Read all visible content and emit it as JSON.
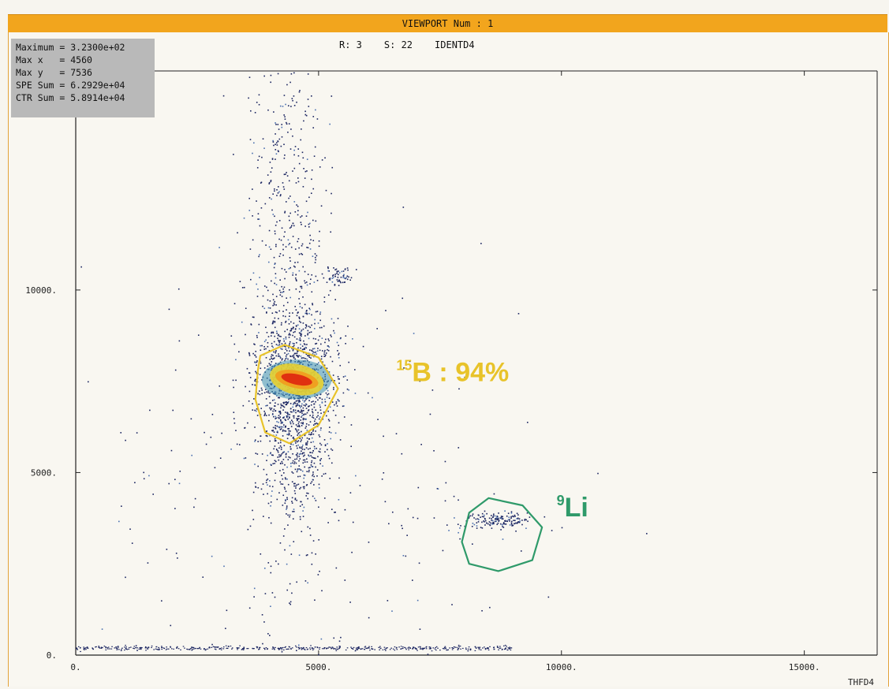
{
  "viewport": {
    "title": "VIEWPORT Num : 1"
  },
  "header": {
    "r_label": "R: 3",
    "s_label": "S: 22",
    "ident": "IDENTD4"
  },
  "stats": [
    {
      "label": "Maximum",
      "value": "3.2300e+02"
    },
    {
      "label": "Max x",
      "value": "4560"
    },
    {
      "label": "Max y",
      "value": "7536"
    },
    {
      "label": "SPE Sum",
      "value": "6.2929e+04"
    },
    {
      "label": "CTR Sum",
      "value": "5.8914e+04"
    }
  ],
  "chart_data": {
    "type": "scatter",
    "title": "",
    "xlabel": "THFD4",
    "ylabel": "",
    "xlim": [
      0,
      16500
    ],
    "ylim": [
      0,
      16000
    ],
    "xticks": [
      0,
      5000,
      10000,
      15000
    ],
    "xtick_labels": [
      "0.",
      "5000.",
      "10000.",
      "15000."
    ],
    "yticks": [
      0,
      5000,
      10000
    ],
    "ytick_labels": [
      "0.",
      "5000.",
      "10000."
    ],
    "grid": false,
    "colors": {
      "gate_b15": "#e8c32a",
      "gate_li9": "#2f9a6a",
      "dots": "#1a2460",
      "hot": "#e03010",
      "warm": "#f0a020"
    },
    "clusters": [
      {
        "name": "band",
        "cx": 4350,
        "cy": 10500,
        "sx": 420,
        "sy": 4200,
        "n": 700
      },
      {
        "name": "b15-core",
        "cx": 4500,
        "cy": 7600,
        "sx": 450,
        "sy": 900,
        "n": 900
      },
      {
        "name": "b15-lower",
        "cx": 4550,
        "cy": 5600,
        "sx": 350,
        "sy": 900,
        "n": 350
      },
      {
        "name": "blob",
        "cx": 5400,
        "cy": 10400,
        "sx": 150,
        "sy": 200,
        "n": 60
      },
      {
        "name": "li9",
        "cx": 8650,
        "cy": 3700,
        "sx": 350,
        "sy": 120,
        "n": 160
      },
      {
        "name": "scatter",
        "cx": 4800,
        "cy": 4000,
        "sx": 2200,
        "sy": 3500,
        "n": 260
      }
    ],
    "hotspot": {
      "cx": 4550,
      "cy": 7550,
      "rx": 450,
      "ry": 320
    },
    "gates": [
      {
        "label_mass": "15",
        "label_text": "B : 94%",
        "color": "#e8c32a",
        "label_x": 6600,
        "label_y": 7500,
        "polygon": [
          [
            3800,
            8200
          ],
          [
            4300,
            8500
          ],
          [
            5000,
            8150
          ],
          [
            5400,
            7300
          ],
          [
            5000,
            6300
          ],
          [
            4400,
            5800
          ],
          [
            3900,
            6100
          ],
          [
            3700,
            7000
          ],
          [
            3750,
            7800
          ]
        ]
      },
      {
        "label_mass": "9",
        "label_text": "Li",
        "color": "#2f9a6a",
        "label_x": 9900,
        "label_y": 3800,
        "polygon": [
          [
            8500,
            4300
          ],
          [
            9200,
            4100
          ],
          [
            9600,
            3500
          ],
          [
            9400,
            2600
          ],
          [
            8700,
            2300
          ],
          [
            8100,
            2500
          ],
          [
            7950,
            3100
          ],
          [
            8100,
            3900
          ]
        ]
      }
    ]
  }
}
